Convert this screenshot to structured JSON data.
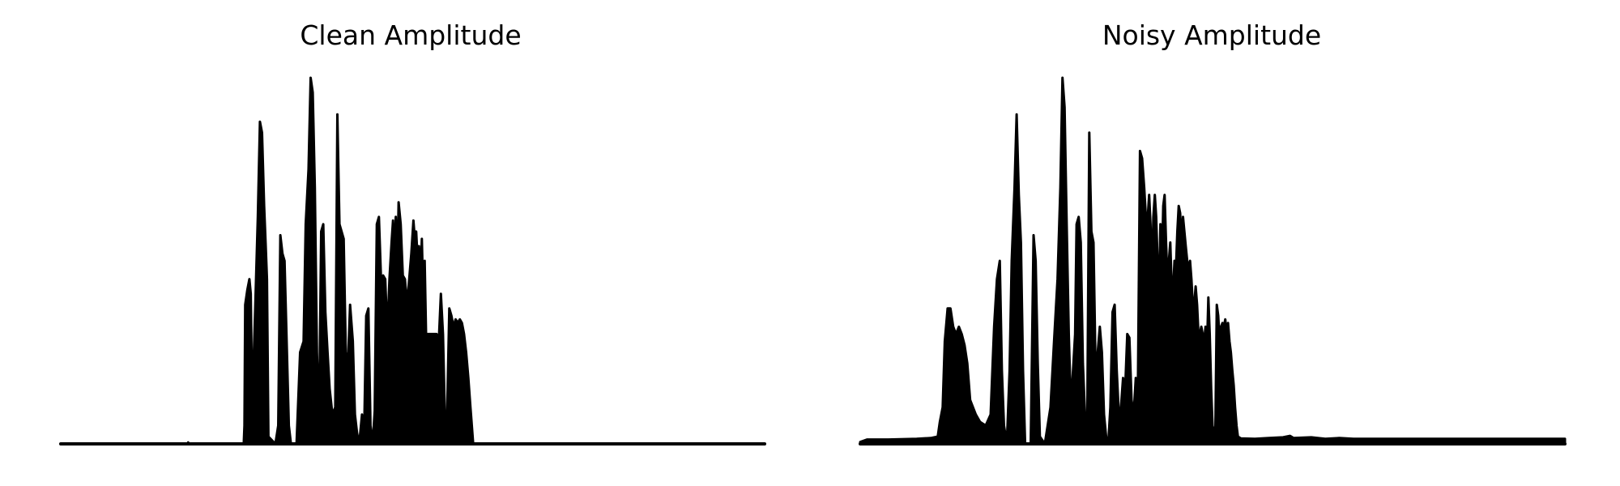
{
  "chart_data": [
    {
      "type": "area",
      "title": "Clean Amplitude",
      "xlabel": "",
      "ylabel": "",
      "grid": false,
      "axes_visible": false,
      "color": "#000000",
      "ylim": [
        0,
        1.0
      ],
      "envelope": [
        [
          0,
          0.0
        ],
        [
          180,
          0.0
        ],
        [
          181,
          0.004
        ],
        [
          182,
          0.0
        ],
        [
          260,
          0.0
        ],
        [
          261,
          0.05
        ],
        [
          262,
          0.38
        ],
        [
          265,
          0.42
        ],
        [
          268,
          0.45
        ],
        [
          270,
          0.41
        ],
        [
          272,
          0.1
        ],
        [
          276,
          0.35
        ],
        [
          280,
          0.62
        ],
        [
          283,
          0.88
        ],
        [
          286,
          0.85
        ],
        [
          289,
          0.65
        ],
        [
          291,
          0.55
        ],
        [
          293,
          0.45
        ],
        [
          295,
          0.02
        ],
        [
          305,
          0.0
        ],
        [
          309,
          0.05
        ],
        [
          312,
          0.57
        ],
        [
          315,
          0.52
        ],
        [
          318,
          0.5
        ],
        [
          321,
          0.28
        ],
        [
          324,
          0.05
        ],
        [
          327,
          0.0
        ],
        [
          335,
          0.0
        ],
        [
          340,
          0.25
        ],
        [
          345,
          0.28
        ],
        [
          348,
          0.6
        ],
        [
          352,
          0.75
        ],
        [
          355,
          1.0
        ],
        [
          358,
          0.96
        ],
        [
          361,
          0.7
        ],
        [
          364,
          0.25
        ],
        [
          367,
          0.05
        ],
        [
          370,
          0.58
        ],
        [
          373,
          0.6
        ],
        [
          376,
          0.36
        ],
        [
          379,
          0.25
        ],
        [
          382,
          0.15
        ],
        [
          386,
          0.08
        ],
        [
          390,
          0.1
        ],
        [
          393,
          0.9
        ],
        [
          396,
          0.6
        ],
        [
          399,
          0.58
        ],
        [
          402,
          0.56
        ],
        [
          405,
          0.25
        ],
        [
          408,
          0.22
        ],
        [
          411,
          0.38
        ],
        [
          415,
          0.28
        ],
        [
          418,
          0.08
        ],
        [
          421,
          0.03
        ],
        [
          424,
          0.0
        ],
        [
          428,
          0.08
        ],
        [
          431,
          0.02
        ],
        [
          434,
          0.35
        ],
        [
          437,
          0.37
        ],
        [
          440,
          0.05
        ],
        [
          443,
          0.0
        ],
        [
          446,
          0.09
        ],
        [
          449,
          0.6
        ],
        [
          452,
          0.62
        ],
        [
          455,
          0.45
        ],
        [
          458,
          0.46
        ],
        [
          461,
          0.45
        ],
        [
          464,
          0.3
        ],
        [
          467,
          0.45
        ],
        [
          470,
          0.55
        ],
        [
          472,
          0.61
        ],
        [
          474,
          0.5
        ],
        [
          476,
          0.62
        ],
        [
          478,
          0.45
        ],
        [
          480,
          0.66
        ],
        [
          483,
          0.6
        ],
        [
          486,
          0.46
        ],
        [
          489,
          0.45
        ],
        [
          492,
          0.38
        ],
        [
          495,
          0.45
        ],
        [
          498,
          0.52
        ],
        [
          501,
          0.61
        ],
        [
          503,
          0.56
        ],
        [
          505,
          0.58
        ],
        [
          507,
          0.5
        ],
        [
          509,
          0.54
        ],
        [
          511,
          0.45
        ],
        [
          513,
          0.56
        ],
        [
          515,
          0.4
        ],
        [
          517,
          0.5
        ],
        [
          519,
          0.3
        ],
        [
          522,
          0.3
        ],
        [
          525,
          0.3
        ],
        [
          528,
          0.3
        ],
        [
          531,
          0.3
        ],
        [
          534,
          0.3
        ],
        [
          537,
          0.28
        ],
        [
          540,
          0.41
        ],
        [
          543,
          0.3
        ],
        [
          546,
          0.05
        ],
        [
          548,
          0.0
        ],
        [
          552,
          0.37
        ],
        [
          555,
          0.35
        ],
        [
          558,
          0.32
        ],
        [
          561,
          0.34
        ],
        [
          564,
          0.33
        ],
        [
          567,
          0.34
        ],
        [
          570,
          0.33
        ],
        [
          573,
          0.3
        ],
        [
          576,
          0.25
        ],
        [
          579,
          0.18
        ],
        [
          582,
          0.1
        ],
        [
          584,
          0.05
        ],
        [
          586,
          0.0
        ],
        [
          1000,
          0.0
        ]
      ]
    },
    {
      "type": "area",
      "title": "Noisy Amplitude",
      "xlabel": "",
      "ylabel": "",
      "grid": false,
      "axes_visible": false,
      "color": "#000000",
      "ylim": [
        0,
        1.0
      ],
      "envelope": [
        [
          0,
          0.005
        ],
        [
          10,
          0.012
        ],
        [
          40,
          0.012
        ],
        [
          80,
          0.014
        ],
        [
          100,
          0.016
        ],
        [
          110,
          0.02
        ],
        [
          113,
          0.06
        ],
        [
          117,
          0.1
        ],
        [
          120,
          0.28
        ],
        [
          124,
          0.37
        ],
        [
          128,
          0.37
        ],
        [
          132,
          0.32
        ],
        [
          136,
          0.3
        ],
        [
          140,
          0.32
        ],
        [
          144,
          0.3
        ],
        [
          148,
          0.27
        ],
        [
          152,
          0.22
        ],
        [
          156,
          0.12
        ],
        [
          160,
          0.1
        ],
        [
          164,
          0.08
        ],
        [
          170,
          0.06
        ],
        [
          178,
          0.05
        ],
        [
          185,
          0.08
        ],
        [
          190,
          0.32
        ],
        [
          194,
          0.45
        ],
        [
          198,
          0.5
        ],
        [
          201,
          0.2
        ],
        [
          204,
          0.05
        ],
        [
          208,
          0.0
        ],
        [
          212,
          0.2
        ],
        [
          215,
          0.5
        ],
        [
          219,
          0.7
        ],
        [
          222,
          0.9
        ],
        [
          225,
          0.68
        ],
        [
          228,
          0.55
        ],
        [
          231,
          0.2
        ],
        [
          234,
          0.0
        ],
        [
          242,
          0.0
        ],
        [
          246,
          0.57
        ],
        [
          249,
          0.5
        ],
        [
          252,
          0.22
        ],
        [
          255,
          0.02
        ],
        [
          262,
          0.0
        ],
        [
          270,
          0.1
        ],
        [
          275,
          0.28
        ],
        [
          280,
          0.45
        ],
        [
          284,
          0.7
        ],
        [
          287,
          1.0
        ],
        [
          290,
          0.92
        ],
        [
          293,
          0.6
        ],
        [
          296,
          0.3
        ],
        [
          299,
          0.1
        ],
        [
          302,
          0.2
        ],
        [
          305,
          0.3
        ],
        [
          307,
          0.6
        ],
        [
          310,
          0.62
        ],
        [
          313,
          0.55
        ],
        [
          316,
          0.22
        ],
        [
          319,
          0.08
        ],
        [
          322,
          0.0
        ],
        [
          325,
          0.85
        ],
        [
          328,
          0.58
        ],
        [
          331,
          0.55
        ],
        [
          334,
          0.2
        ],
        [
          337,
          0.25
        ],
        [
          340,
          0.32
        ],
        [
          343,
          0.25
        ],
        [
          346,
          0.08
        ],
        [
          349,
          0.02
        ],
        [
          352,
          0.0
        ],
        [
          355,
          0.1
        ],
        [
          358,
          0.36
        ],
        [
          361,
          0.38
        ],
        [
          364,
          0.2
        ],
        [
          367,
          0.08
        ],
        [
          370,
          0.1
        ],
        [
          373,
          0.18
        ],
        [
          376,
          0.15
        ],
        [
          379,
          0.3
        ],
        [
          382,
          0.29
        ],
        [
          385,
          0.12
        ],
        [
          388,
          0.08
        ],
        [
          391,
          0.18
        ],
        [
          394,
          0.15
        ],
        [
          397,
          0.8
        ],
        [
          400,
          0.78
        ],
        [
          403,
          0.7
        ],
        [
          406,
          0.6
        ],
        [
          408,
          0.62
        ],
        [
          410,
          0.68
        ],
        [
          412,
          0.6
        ],
        [
          414,
          0.45
        ],
        [
          416,
          0.62
        ],
        [
          418,
          0.68
        ],
        [
          420,
          0.62
        ],
        [
          422,
          0.5
        ],
        [
          424,
          0.4
        ],
        [
          426,
          0.6
        ],
        [
          428,
          0.48
        ],
        [
          430,
          0.65
        ],
        [
          432,
          0.68
        ],
        [
          434,
          0.55
        ],
        [
          436,
          0.45
        ],
        [
          438,
          0.5
        ],
        [
          440,
          0.55
        ],
        [
          442,
          0.43
        ],
        [
          444,
          0.42
        ],
        [
          446,
          0.5
        ],
        [
          448,
          0.48
        ],
        [
          450,
          0.58
        ],
        [
          452,
          0.65
        ],
        [
          454,
          0.63
        ],
        [
          456,
          0.55
        ],
        [
          458,
          0.62
        ],
        [
          460,
          0.58
        ],
        [
          462,
          0.54
        ],
        [
          464,
          0.5
        ],
        [
          466,
          0.48
        ],
        [
          468,
          0.5
        ],
        [
          470,
          0.45
        ],
        [
          472,
          0.38
        ],
        [
          474,
          0.38
        ],
        [
          476,
          0.43
        ],
        [
          478,
          0.38
        ],
        [
          480,
          0.3
        ],
        [
          482,
          0.3
        ],
        [
          484,
          0.32
        ],
        [
          486,
          0.3
        ],
        [
          488,
          0.28
        ],
        [
          490,
          0.32
        ],
        [
          492,
          0.25
        ],
        [
          494,
          0.4
        ],
        [
          496,
          0.3
        ],
        [
          498,
          0.15
        ],
        [
          500,
          0.05
        ],
        [
          502,
          0.02
        ],
        [
          504,
          0.05
        ],
        [
          506,
          0.38
        ],
        [
          508,
          0.35
        ],
        [
          510,
          0.28
        ],
        [
          512,
          0.32
        ],
        [
          514,
          0.33
        ],
        [
          516,
          0.32
        ],
        [
          518,
          0.34
        ],
        [
          520,
          0.3
        ],
        [
          522,
          0.33
        ],
        [
          524,
          0.28
        ],
        [
          526,
          0.25
        ],
        [
          528,
          0.2
        ],
        [
          530,
          0.16
        ],
        [
          532,
          0.1
        ],
        [
          534,
          0.05
        ],
        [
          536,
          0.02
        ],
        [
          540,
          0.015
        ],
        [
          560,
          0.014
        ],
        [
          580,
          0.016
        ],
        [
          600,
          0.018
        ],
        [
          610,
          0.022
        ],
        [
          615,
          0.016
        ],
        [
          640,
          0.018
        ],
        [
          660,
          0.014
        ],
        [
          680,
          0.016
        ],
        [
          700,
          0.014
        ],
        [
          1000,
          0.014
        ]
      ]
    }
  ]
}
